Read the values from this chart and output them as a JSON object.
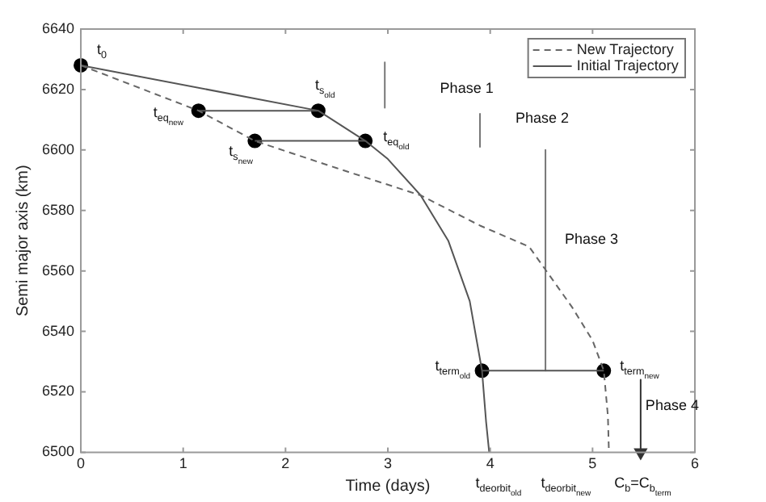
{
  "chart_data": {
    "type": "line",
    "xlabel": "Time (days)",
    "ylabel": "Semi major axis (km)",
    "xlim": [
      0,
      6
    ],
    "xticks": [
      0,
      1,
      2,
      3,
      4,
      5,
      6
    ],
    "ylim": [
      6500,
      6640
    ],
    "yticks": [
      6500,
      6520,
      6540,
      6560,
      6580,
      6600,
      6620,
      6640
    ],
    "grid": false,
    "legend": "top right",
    "marker": "none",
    "series": [
      {
        "name": "New Trajectory",
        "color": "#666666",
        "line_style": "dashed",
        "x": [
          0,
          1.15,
          1.7,
          2.5,
          3.32,
          3.9,
          4.38,
          4.8,
          5.0,
          5.11,
          5.15,
          5.16
        ],
        "values": [
          6628,
          6613,
          6603,
          6594,
          6585,
          6575,
          6568,
          6548,
          6537,
          6527,
          6512,
          6500
        ]
      },
      {
        "name": "Initial Trajectory",
        "color": "#555555",
        "line_style": "solid",
        "x": [
          0,
          2.32,
          2.78,
          3.0,
          3.32,
          3.59,
          3.8,
          3.92,
          3.96,
          3.99
        ],
        "values": [
          6628,
          6613,
          6603,
          6597,
          6585,
          6570,
          6550,
          6527,
          6510,
          6500
        ]
      },
      {
        "color": "#555555",
        "x": [
          1.15,
          2.32
        ],
        "values": [
          6613,
          6613
        ]
      },
      {
        "color": "#555555",
        "x": [
          1.7,
          2.78
        ],
        "values": [
          6603,
          6603
        ]
      },
      {
        "color": "#555555",
        "x": [
          3.92,
          5.11
        ],
        "values": [
          6527,
          6527
        ]
      },
      {
        "color": "#777777",
        "x": [
          2.97,
          2.97
        ],
        "values": [
          6629,
          6614
        ]
      },
      {
        "color": "#777777",
        "x": [
          3.9,
          3.9
        ],
        "values": [
          6612,
          6601
        ]
      },
      {
        "color": "#777777",
        "x": [
          4.54,
          4.54
        ],
        "values": [
          6600,
          6527
        ]
      },
      {
        "color": "#333333",
        "x": [
          5.47,
          5.47
        ],
        "values": [
          6524,
          6500
        ],
        "marker": "triangle"
      },
      {
        "type": "scatter",
        "color": "#000000",
        "marker": "circle",
        "x": [
          0,
          1.15,
          2.32,
          1.7,
          2.78,
          3.92,
          5.11
        ],
        "values": [
          6628,
          6613,
          6613,
          6603,
          6603,
          6527,
          6527
        ]
      }
    ],
    "annotations": [
      {
        "text": "t$_{0}$",
        "x": 0,
        "y": 6628
      },
      {
        "text": "t$_{eq}$$_{new}$",
        "x": 1.15,
        "y": 6613
      },
      {
        "text": "t$_{s}$$_{new}$",
        "x": 1.7,
        "y": 6603
      },
      {
        "text": "t$_{s}$$_{old}$",
        "x": 2.32,
        "y": 6613
      },
      {
        "text": "t$_{eq}$$_{old}$",
        "x": 2.78,
        "y": 6603
      },
      {
        "text": "t$_{term}$$_{old}$",
        "x": 3.92,
        "y": 6527
      },
      {
        "text": "t$_{term}$$_{new}$",
        "x": 5.11,
        "y": 6527
      },
      "Phase 1",
      {
        "text": "Phase 2",
        "x": 3.9,
        "y": 6607
      },
      {
        "text": "Phase 3",
        "x": 4.54,
        "y": 6569
      },
      {
        "text": "Phase 4",
        "x": 5.47,
        "y": 6514
      },
      "t$_{deorbit}$$_{old}$",
      "t$_{deorbit}$$_{new}$",
      "C$_{b}$=C$_{b}$$_{term}$"
    ]
  }
}
